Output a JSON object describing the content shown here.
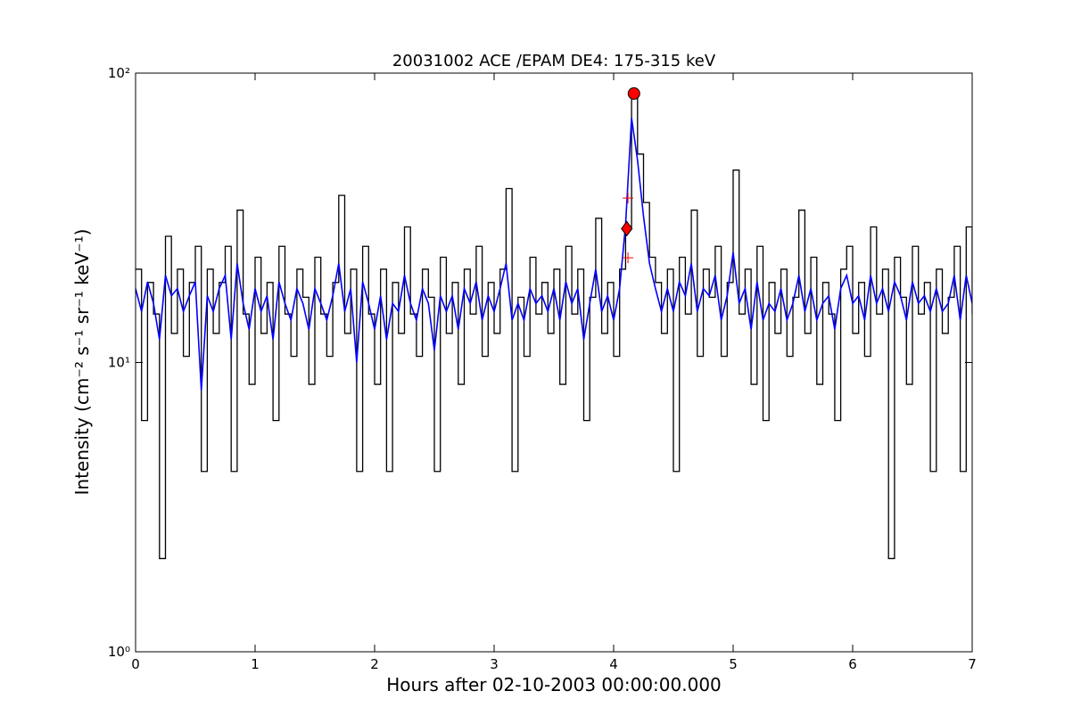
{
  "chart_data": {
    "type": "line",
    "title": "20031002 ACE /EPAM DE4: 175-315 keV",
    "x_label": "Hours after 02-10-2003 00:00:00.000",
    "y_label": "Intensity (cm⁻² s⁻¹ sr⁻¹ keV⁻¹)",
    "log_y": true,
    "xlim": [
      0,
      7
    ],
    "xticks": [
      0,
      1,
      2,
      3,
      4,
      5,
      6,
      7
    ],
    "ylim": [
      1,
      100
    ],
    "yticks": [
      {
        "value": 1,
        "label": "10⁰"
      },
      {
        "value": 10,
        "label": "10¹"
      },
      {
        "value": 100,
        "label": "10²"
      }
    ],
    "x": [
      0,
      0.05,
      0.1,
      0.15,
      0.2,
      0.25,
      0.3,
      0.35,
      0.4,
      0.45,
      0.5,
      0.55,
      0.6,
      0.65,
      0.7,
      0.75,
      0.8,
      0.85,
      0.9,
      0.95,
      1,
      1.05,
      1.1,
      1.15,
      1.2,
      1.25,
      1.3,
      1.35,
      1.4,
      1.45,
      1.5,
      1.55,
      1.6,
      1.65,
      1.7,
      1.75,
      1.8,
      1.85,
      1.9,
      1.95,
      2,
      2.05,
      2.1,
      2.15,
      2.2,
      2.25,
      2.3,
      2.35,
      2.4,
      2.45,
      2.5,
      2.55,
      2.6,
      2.65,
      2.7,
      2.75,
      2.8,
      2.85,
      2.9,
      2.95,
      3,
      3.05,
      3.1,
      3.15,
      3.2,
      3.25,
      3.3,
      3.35,
      3.4,
      3.45,
      3.5,
      3.55,
      3.6,
      3.65,
      3.7,
      3.75,
      3.8,
      3.85,
      3.9,
      3.95,
      4,
      4.05,
      4.1,
      4.15,
      4.2,
      4.25,
      4.3,
      4.35,
      4.4,
      4.45,
      4.5,
      4.55,
      4.6,
      4.65,
      4.7,
      4.75,
      4.8,
      4.85,
      4.9,
      4.95,
      5,
      5.05,
      5.1,
      5.15,
      5.2,
      5.25,
      5.3,
      5.35,
      5.4,
      5.45,
      5.5,
      5.55,
      5.6,
      5.65,
      5.7,
      5.75,
      5.8,
      5.85,
      5.9,
      5.95,
      6,
      6.05,
      6.1,
      6.15,
      6.2,
      6.25,
      6.3,
      6.35,
      6.4,
      6.45,
      6.5,
      6.55,
      6.6,
      6.65,
      6.7,
      6.75,
      6.8,
      6.85,
      6.9,
      6.95,
      7
    ],
    "series": [
      {
        "color": "#000000",
        "drawstyle": "steps",
        "values": [
          21,
          6.3,
          18.9,
          14.7,
          2.1,
          27.3,
          12.6,
          21,
          10.5,
          18.9,
          25.2,
          4.2,
          21,
          12.6,
          18.9,
          25.2,
          4.2,
          33.6,
          14.7,
          8.4,
          23.1,
          12.6,
          18.9,
          6.3,
          25.2,
          14.7,
          10.5,
          21,
          16.8,
          8.4,
          23.1,
          14.7,
          10.5,
          18.9,
          37.8,
          12.6,
          21,
          4.2,
          25.2,
          14.7,
          8.4,
          21,
          4.2,
          18.9,
          12.6,
          29.4,
          14.7,
          10.5,
          21,
          16.8,
          4.2,
          23.1,
          12.6,
          18.9,
          8.4,
          21,
          14.7,
          25.2,
          10.5,
          18.9,
          12.6,
          21,
          39.9,
          4.2,
          16.8,
          10.5,
          23.1,
          14.7,
          18.9,
          12.6,
          21,
          8.4,
          25.2,
          14.7,
          21,
          6.3,
          16.8,
          31.5,
          12.6,
          18.9,
          10.5,
          21,
          29.4,
          81.9,
          52.5,
          35.7,
          23.1,
          18.9,
          12.6,
          21,
          4.2,
          23.1,
          14.7,
          33.6,
          10.5,
          21,
          16.8,
          25.2,
          10.5,
          18.9,
          46.2,
          14.7,
          21,
          8.4,
          25.2,
          6.3,
          18.9,
          12.6,
          21,
          10.5,
          16.8,
          33.6,
          12.6,
          23.1,
          8.4,
          18.9,
          14.7,
          6.3,
          21,
          25.2,
          12.6,
          18.9,
          10.5,
          29.4,
          14.7,
          21,
          2.1,
          23.1,
          16.8,
          8.4,
          25.2,
          14.7,
          18.9,
          4.2,
          21,
          12.6,
          16.8,
          25.2,
          4.2,
          29.4,
          14.7
        ]
      },
      {
        "color": "#0000ff",
        "drawstyle": "line",
        "values": [
          18,
          15,
          19,
          16,
          12,
          20,
          17,
          18,
          15,
          17,
          19,
          8,
          17,
          15,
          18,
          20,
          12,
          22,
          16,
          13,
          18,
          15,
          17,
          12,
          19,
          16,
          14,
          18,
          16,
          13,
          18,
          16,
          14,
          17,
          22,
          15,
          18,
          10,
          19,
          16,
          13,
          17,
          12,
          16,
          15,
          20,
          16,
          14,
          18,
          16,
          11,
          17,
          15,
          17,
          13,
          18,
          16,
          19,
          14,
          17,
          15,
          18,
          22,
          14,
          16,
          14,
          18,
          16,
          17,
          15,
          18,
          14,
          19,
          16,
          18,
          12,
          16,
          21,
          15,
          17,
          14,
          18,
          30,
          70,
          50,
          32,
          22,
          18,
          15,
          18,
          15,
          19,
          17,
          22,
          15,
          18,
          17,
          20,
          14,
          17,
          24,
          16,
          18,
          13,
          19,
          14,
          16,
          15,
          18,
          14,
          16,
          20,
          15,
          18,
          14,
          16,
          17,
          13,
          18,
          20,
          16,
          17,
          14,
          20,
          16,
          18,
          15,
          19,
          17,
          14,
          19,
          16,
          17,
          15,
          18,
          15,
          16,
          20,
          14,
          20,
          16
        ]
      }
    ],
    "markers": [
      {
        "shape": "plus",
        "color": "#ff0000",
        "x": 4.12,
        "y": 37
      },
      {
        "shape": "plus",
        "color": "#ff0000",
        "x": 4.12,
        "y": 23
      },
      {
        "shape": "diamond",
        "color": "#ff0000",
        "x": 4.11,
        "y": 29
      },
      {
        "shape": "circle",
        "color": "#ff0000",
        "x": 4.17,
        "y": 85
      }
    ]
  }
}
